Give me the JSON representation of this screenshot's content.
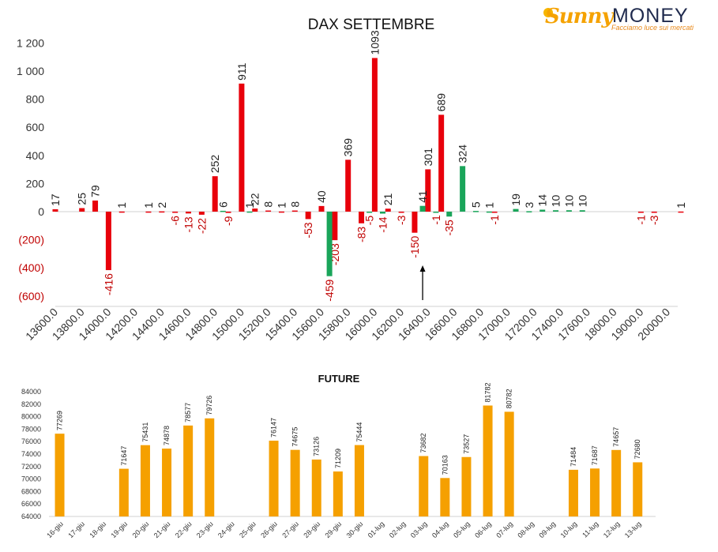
{
  "logo": {
    "brand_part1": "Sunny",
    "brand_part2": "MONEY",
    "tagline": "Facciamo luce sui mercati"
  },
  "colors": {
    "positive": "#e8000b",
    "negative": "#e8000b",
    "green": "#1aa55a",
    "future": "#f5a000",
    "neg_text": "#c00000"
  },
  "chart_data": [
    {
      "type": "bar",
      "title": "DAX SETTEMBRE",
      "xlabel": "",
      "ylabel": "",
      "ylim": [
        -600,
        1200
      ],
      "yticks": [
        1200,
        1000,
        800,
        600,
        400,
        200,
        0,
        -200,
        -400,
        -600
      ],
      "ytick_labels": [
        "1 200",
        "1 000",
        "800",
        "600",
        "400",
        "200",
        "0",
        "(200)",
        "(400)",
        "(600)"
      ],
      "xlim": [
        13600,
        20000
      ],
      "xtick_labels": [
        "13600.0",
        "13800.0",
        "14000.0",
        "14200.0",
        "14400.0",
        "14600.0",
        "14800.0",
        "15000.0",
        "15200.0",
        "15400.0",
        "15600.0",
        "15800.0",
        "16000.0",
        "16200.0",
        "16400.0",
        "16600.0",
        "16800.0",
        "17000.0",
        "17200.0",
        "17400.0",
        "17600.0",
        "18000.0",
        "19000.0",
        "20000.0"
      ],
      "series": [
        {
          "color": "red",
          "points": [
            {
              "slot": 0,
              "value": 17
            },
            {
              "slot": 1,
              "value": 25
            },
            {
              "slot": 1.5,
              "value": 79
            },
            {
              "slot": 2,
              "value": -416
            },
            {
              "slot": 2.5,
              "value": 1
            },
            {
              "slot": 3.5,
              "value": 1
            },
            {
              "slot": 4,
              "value": 2
            },
            {
              "slot": 4.5,
              "value": -6
            },
            {
              "slot": 5,
              "value": -13
            },
            {
              "slot": 5.5,
              "value": -22
            },
            {
              "slot": 6,
              "value": 252
            },
            {
              "slot": 6.5,
              "value": -9
            },
            {
              "slot": 7,
              "value": 911
            },
            {
              "slot": 7.5,
              "value": 22
            },
            {
              "slot": 8,
              "value": 8
            },
            {
              "slot": 8.5,
              "value": 1
            },
            {
              "slot": 9,
              "value": 8
            },
            {
              "slot": 9.5,
              "value": -53
            },
            {
              "slot": 10,
              "value": 40
            },
            {
              "slot": 10.5,
              "value": -203
            },
            {
              "slot": 11,
              "value": 369
            },
            {
              "slot": 11.5,
              "value": -83
            },
            {
              "slot": 12,
              "value": 1093
            },
            {
              "slot": 12.5,
              "value": 21
            },
            {
              "slot": 13,
              "value": -3
            },
            {
              "slot": 13.5,
              "value": -150
            },
            {
              "slot": 14,
              "value": 301
            },
            {
              "slot": 14.5,
              "value": 689
            },
            {
              "slot": 16.5,
              "value": -1
            },
            {
              "slot": 22,
              "value": -1
            },
            {
              "slot": 22.5,
              "value": -3
            },
            {
              "slot": 23.5,
              "value": 1
            }
          ]
        },
        {
          "color": "green",
          "points": [
            {
              "slot": 6.3,
              "value": 6
            },
            {
              "slot": 7.3,
              "value": 1
            },
            {
              "slot": 10.3,
              "value": -459
            },
            {
              "slot": 11.8,
              "value": -5
            },
            {
              "slot": 12.3,
              "value": -14
            },
            {
              "slot": 13.8,
              "value": 41
            },
            {
              "slot": 14.3,
              "value": -1
            },
            {
              "slot": 14.8,
              "value": -35
            },
            {
              "slot": 15.3,
              "value": 324
            },
            {
              "slot": 15.8,
              "value": 5
            },
            {
              "slot": 16.3,
              "value": 1
            },
            {
              "slot": 17.3,
              "value": 19
            },
            {
              "slot": 17.8,
              "value": 3
            },
            {
              "slot": 18.3,
              "value": 14
            },
            {
              "slot": 18.8,
              "value": 10
            },
            {
              "slot": 19.3,
              "value": 10
            },
            {
              "slot": 19.8,
              "value": 10
            }
          ]
        }
      ],
      "annotations": [
        {
          "type": "arrow",
          "x": "16200.0",
          "direction": "up"
        }
      ]
    },
    {
      "type": "bar",
      "title": "FUTURE",
      "xlabel": "",
      "ylabel": "",
      "ylim": [
        64000,
        84000
      ],
      "yticks": [
        64000,
        66000,
        68000,
        70000,
        72000,
        74000,
        76000,
        78000,
        80000,
        82000,
        84000
      ],
      "categories": [
        "16-giu",
        "17-giu",
        "18-giu",
        "19-giu",
        "20-giu",
        "21-giu",
        "22-giu",
        "23-giu",
        "24-giu",
        "25-giu",
        "26-giu",
        "27-giu",
        "28-giu",
        "29-giu",
        "30-giu",
        "01-lug",
        "02-lug",
        "03-lug",
        "04-lug",
        "05-lug",
        "06-lug",
        "07-lug",
        "08-lug",
        "09-lug",
        "10-lug",
        "11-lug",
        "12-lug",
        "13-lug"
      ],
      "values": [
        77269,
        null,
        null,
        71647,
        75431,
        74878,
        78577,
        79726,
        null,
        null,
        76147,
        74675,
        73126,
        71209,
        75444,
        null,
        null,
        73682,
        70163,
        73527,
        81782,
        80782,
        null,
        null,
        71484,
        71687,
        74657,
        72680
      ],
      "labels": [
        "77269",
        "",
        "",
        "71647",
        "75431",
        "74878",
        "78577",
        "79726",
        "",
        "",
        "76147",
        "74675",
        "73126",
        "71209",
        "75444",
        "",
        "",
        "73682",
        "70163",
        "73527",
        "81782",
        "80782",
        "",
        "",
        "71484",
        "71687",
        "74657",
        "72680"
      ]
    }
  ]
}
